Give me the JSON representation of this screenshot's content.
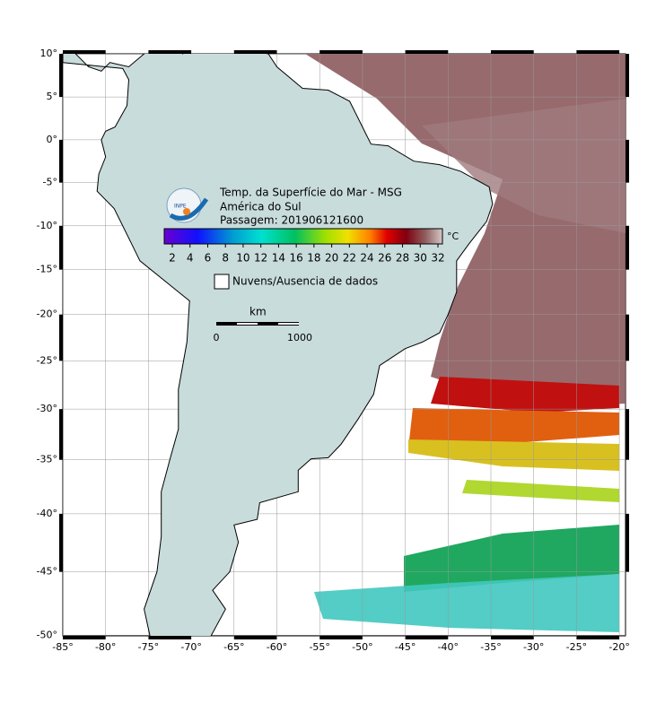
{
  "map": {
    "lat_labels": [
      "10°",
      "5°",
      "0°",
      "-5°",
      "-10°",
      "-15°",
      "-20°",
      "-25°",
      "-30°",
      "-35°",
      "-40°",
      "-45°",
      "-50°"
    ],
    "lon_labels": [
      "-85°",
      "-80°",
      "-75°",
      "-70°",
      "-65°",
      "-60°",
      "-55°",
      "-50°",
      "-45°",
      "-40°",
      "-35°",
      "-30°",
      "-25°",
      "-20°"
    ],
    "title": {
      "line1": "Temp. da Superfície do Mar - MSG",
      "line2": "América do Sul",
      "line3": "Passagem: 201906121600"
    },
    "colorbar": {
      "ticks": [
        "2",
        "4",
        "6",
        "8",
        "10",
        "12",
        "14",
        "16",
        "18",
        "20",
        "22",
        "24",
        "26",
        "28",
        "30",
        "32"
      ],
      "unit": "°C"
    },
    "legend": {
      "clouds": "Nuvens/Ausencia de dados"
    },
    "scale_bar": {
      "unit": "km",
      "start": "0",
      "end": "1000"
    },
    "logo": "INPE"
  }
}
